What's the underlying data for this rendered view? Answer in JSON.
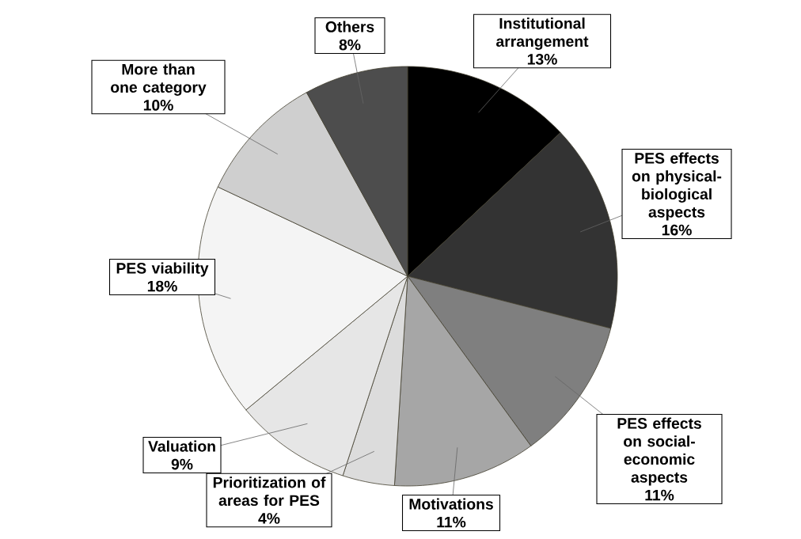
{
  "chart_data": {
    "type": "pie",
    "categories": [
      "Institutional arrangement",
      "PES effects on physical-biological aspects",
      "PES effects on social-economic aspects",
      "Motivations",
      "Prioritization of areas for PES",
      "Valuation",
      "PES viability",
      "More than one category",
      "Others"
    ],
    "values": [
      13,
      16,
      11,
      11,
      4,
      9,
      18,
      10,
      8
    ],
    "value_labels": [
      "13%",
      "16%",
      "11%",
      "11%",
      "4%",
      "9%",
      "18%",
      "10%",
      "8%"
    ],
    "colors": [
      "#000000",
      "#333333",
      "#7f7f7f",
      "#a6a6a6",
      "#dcdcdc",
      "#e6e6e6",
      "#f4f4f4",
      "#cfcfcf",
      "#4d4d4d"
    ]
  }
}
